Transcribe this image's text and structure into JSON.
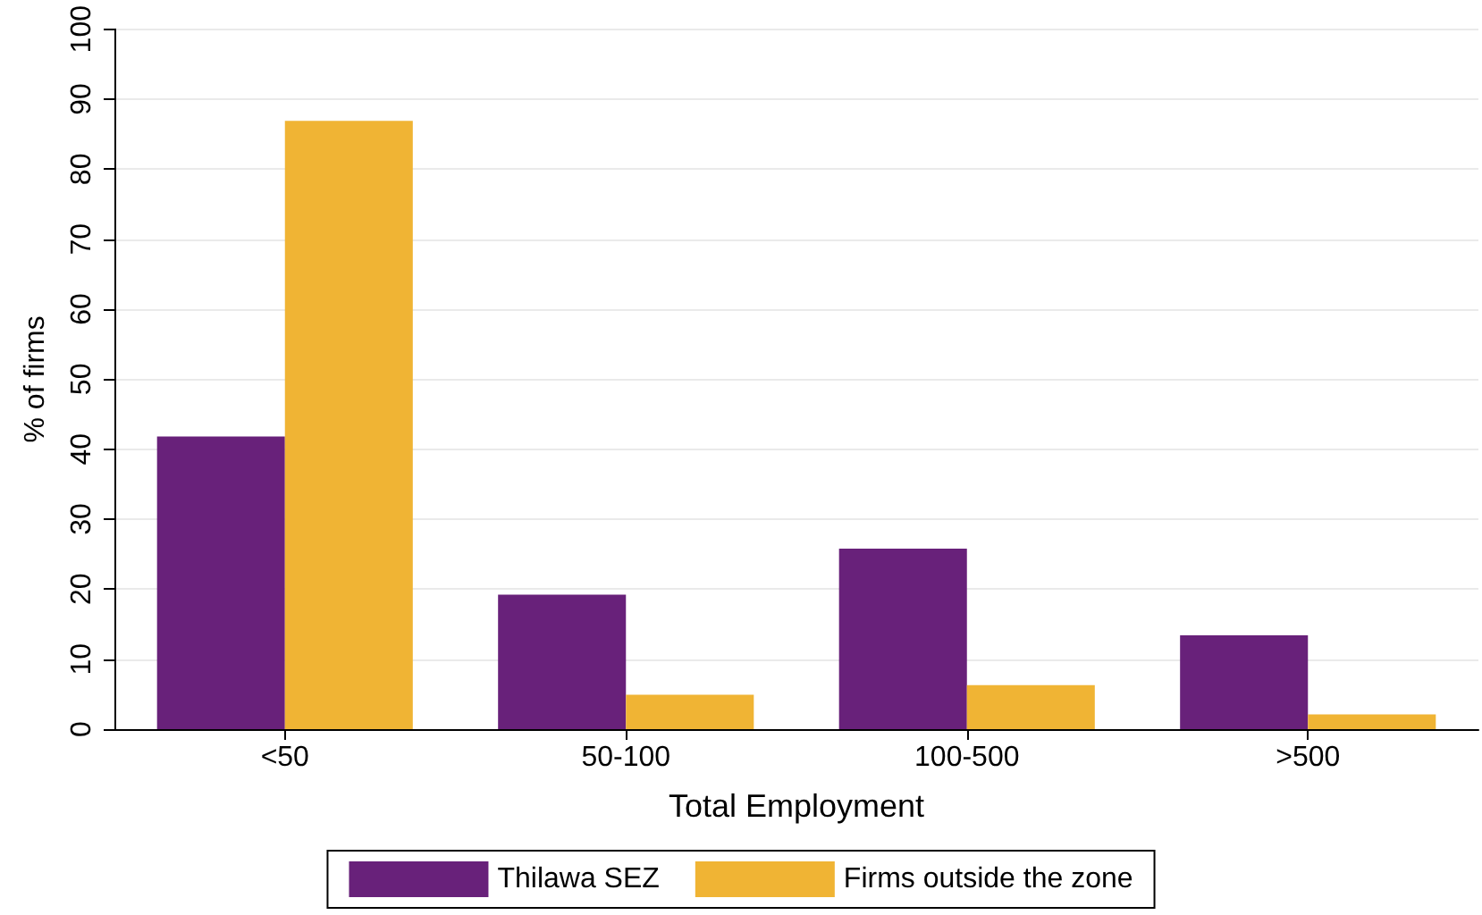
{
  "chart_data": {
    "type": "bar",
    "xlabel": "Total Employment",
    "ylabel": "% of firms",
    "categories": [
      "<50",
      "50-100",
      "100-500",
      ">500"
    ],
    "series": [
      {
        "name": "Thilawa SEZ",
        "color": "#68217a",
        "values": [
          41.8,
          19.2,
          25.8,
          13.4
        ]
      },
      {
        "name": "Firms outside the zone",
        "color": "#f0b434",
        "values": [
          86.9,
          4.9,
          6.3,
          2.1
        ]
      }
    ],
    "ylim": [
      0,
      100
    ],
    "yticks": [
      0,
      10,
      20,
      30,
      40,
      50,
      60,
      70,
      80,
      90,
      100
    ],
    "grid": "y",
    "legend": "bottom"
  }
}
